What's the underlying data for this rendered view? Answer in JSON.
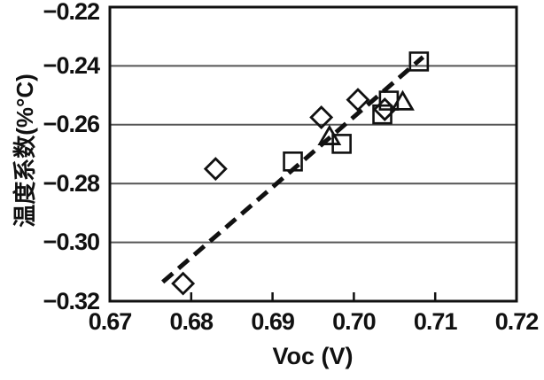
{
  "chart_data": {
    "type": "scatter",
    "title": "",
    "xlabel": "Voc (V)",
    "ylabel": "温度系数(%°C)",
    "xlim": [
      0.67,
      0.72
    ],
    "ylim": [
      -0.32,
      -0.22
    ],
    "x_ticks": [
      0.67,
      0.68,
      0.69,
      0.7,
      0.71,
      0.72
    ],
    "x_tick_labels": [
      "0.67",
      "0.68",
      "0.69",
      "0.70",
      "0.71",
      "0.72"
    ],
    "y_ticks": [
      -0.22,
      -0.24,
      -0.26,
      -0.28,
      -0.3,
      -0.32
    ],
    "y_tick_labels": [
      "−0.22",
      "−0.24",
      "−0.26",
      "−0.28",
      "−0.30",
      "−0.32"
    ],
    "grid": "horizontal-only",
    "legend": "none",
    "series": [
      {
        "name": "diamond-series",
        "marker": "diamond",
        "points": [
          [
            0.679,
            -0.314
          ],
          [
            0.683,
            -0.275
          ],
          [
            0.696,
            -0.2575
          ],
          [
            0.7005,
            -0.2515
          ],
          [
            0.7038,
            -0.2548
          ]
        ]
      },
      {
        "name": "square-series",
        "marker": "square",
        "points": [
          [
            0.6925,
            -0.2725
          ],
          [
            0.6985,
            -0.2665
          ],
          [
            0.7035,
            -0.2565
          ],
          [
            0.7043,
            -0.2518
          ],
          [
            0.708,
            -0.2385
          ]
        ]
      },
      {
        "name": "triangle-series",
        "marker": "triangle",
        "points": [
          [
            0.697,
            -0.264
          ],
          [
            0.706,
            -0.2522
          ]
        ]
      }
    ],
    "trendline": {
      "style": "dashed",
      "x1": 0.6765,
      "y1": -0.3135,
      "x2": 0.7085,
      "y2": -0.237
    },
    "colors": {
      "background": "#ffffff",
      "axis": "#111111",
      "grid": "#555555",
      "marker_stroke": "#111111",
      "trendline": "#111111",
      "text": "#111111"
    }
  }
}
